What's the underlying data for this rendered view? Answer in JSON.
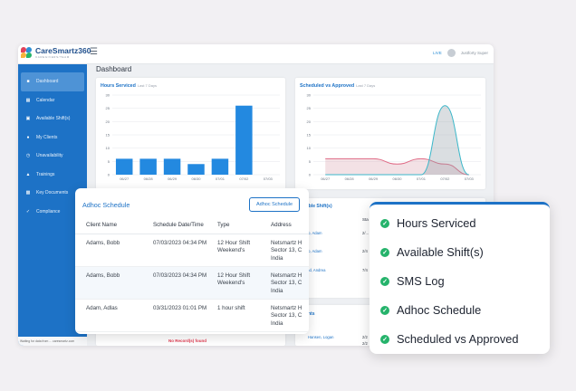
{
  "app": {
    "logo_name": "CareSmartz360",
    "logo_sub": "CAREGIVERS/TEAM",
    "live_link": "LIVE",
    "user_name": "Justforty Super",
    "page_title": "Dashboard"
  },
  "sidebar": {
    "items": [
      {
        "label": "Dashboard",
        "icon": "dashboard-icon"
      },
      {
        "label": "Calendar",
        "icon": "calendar-icon"
      },
      {
        "label": "Available Shift(s)",
        "icon": "shift-icon"
      },
      {
        "label": "My Clients",
        "icon": "clients-icon"
      },
      {
        "label": "Unavailability",
        "icon": "clock-icon"
      },
      {
        "label": "Trainings",
        "icon": "training-icon"
      },
      {
        "label": "Key Documents",
        "icon": "document-icon"
      },
      {
        "label": "Compliance",
        "icon": "compliance-icon"
      }
    ],
    "status_text": "Waiting for data from ... caresmartz.com"
  },
  "hours_card": {
    "title": "Hours Serviced",
    "subtitle": "Last 7 Days"
  },
  "svsa_card": {
    "title": "Scheduled vs Approved",
    "subtitle": "Last 7 Days"
  },
  "available_shifts_card": {
    "title": "able Shift(s)",
    "col_header": "Sta",
    "rows": [
      {
        "name": "Ilo, Adam",
        "start": "2/..."
      },
      {
        "name": "Ilo, Adam",
        "start": "2/4"
      },
      {
        "name": "Ind, Andrea",
        "start": "7/4"
      }
    ]
  },
  "bottom_left_card": {
    "no_records": "No Record(s) found"
  },
  "bottom_right_card": {
    "title": "nts",
    "rows": [
      {
        "name": "Hansen, Logan",
        "start": "2/2"
      },
      {
        "name": "",
        "start": "2/2"
      }
    ]
  },
  "adhoc": {
    "title": "Adhoc Schedule",
    "button_label": "Adhoc Schedule",
    "headers": [
      "Client Name",
      "Schedule Date/Time",
      "Type",
      "Address"
    ],
    "rows": [
      {
        "client": "Adams, Bobb",
        "date": "07/03/2023 04:34 PM",
        "type": "12 Hour Shift Weekend's",
        "address": "Netsmartz H Sector 13, C India"
      },
      {
        "client": "Adams, Bobb",
        "date": "07/03/2023 04:34 PM",
        "type": "12 Hour Shift Weekend's",
        "address": "Netsmartz H Sector 13, C India"
      },
      {
        "client": "Adam, Adlas",
        "date": "03/31/2023 01:01 PM",
        "type": "1 hour shift",
        "address": "Netsmartz H Sector 13, C India"
      }
    ]
  },
  "features": [
    "Hours Serviced",
    "Available Shift(s)",
    "SMS Log",
    "Adhoc Schedule",
    "Scheduled vs Approved"
  ],
  "colors": {
    "brand_blue": "#1d72c6",
    "check_green": "#25b36b",
    "bar_blue": "#2389e0",
    "line_pink": "#e06b86",
    "line_teal": "#3bb7c9"
  },
  "chart_data": [
    {
      "type": "bar",
      "title": "Hours Serviced",
      "subtitle": "Last 7 Days",
      "categories": [
        "06/27",
        "06/28",
        "06/29",
        "06/30",
        "07/01",
        "07/02",
        "07/03"
      ],
      "values": [
        6,
        6,
        6,
        4,
        6,
        26,
        0
      ],
      "ylim": [
        0,
        30
      ],
      "yticks": [
        0,
        5,
        10,
        15,
        20,
        25,
        30
      ],
      "grid": true
    },
    {
      "type": "area",
      "title": "Scheduled vs Approved",
      "subtitle": "Last 7 Days",
      "categories": [
        "06/27",
        "06/28",
        "06/29",
        "06/30",
        "07/01",
        "07/02",
        "07/03"
      ],
      "ylim": [
        0,
        30
      ],
      "yticks": [
        0,
        5,
        10,
        15,
        20,
        25,
        30
      ],
      "grid": true,
      "series": [
        {
          "values": [
            6,
            6,
            6,
            4,
            6,
            4,
            0
          ]
        },
        {
          "values": [
            0,
            0,
            0,
            0,
            0,
            26,
            0
          ]
        }
      ]
    }
  ]
}
